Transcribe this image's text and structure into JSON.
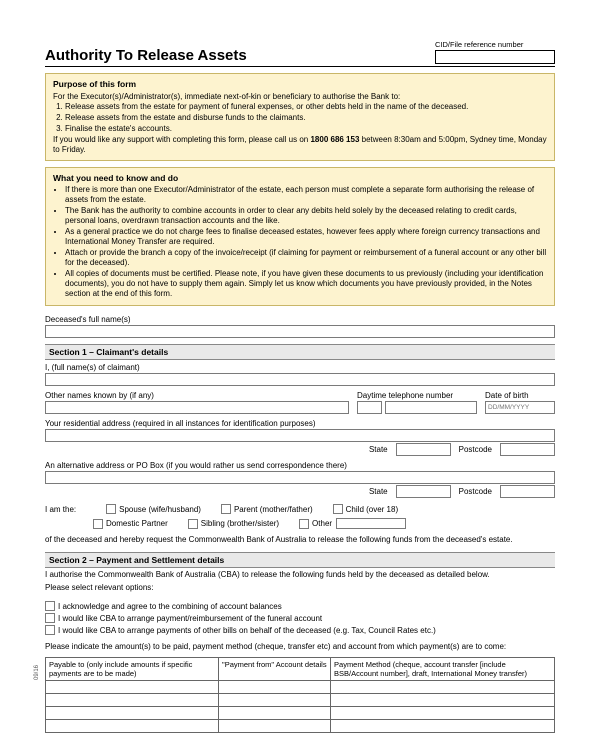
{
  "header": {
    "cid_label": "CID/File reference number",
    "title": "Authority To Release Assets"
  },
  "purpose": {
    "title": "Purpose of this form",
    "intro": "For the Executor(s)/Administrator(s), immediate next-of-kin or beneficiary to authorise the Bank to:",
    "items": [
      "Release assets from the estate for payment of funeral expenses, or other debts held in the name of the deceased.",
      "Release assets from the estate and disburse funds to the claimants.",
      "Finalise the estate's accounts."
    ],
    "support": "If you would like any support with completing this form, please call us on 1800 686 153 between 8:30am and 5:00pm, Sydney time, Monday to Friday."
  },
  "need": {
    "title": "What you need to know and do",
    "bullets": [
      "If there is more than one Executor/Administrator of the estate, each person must complete a separate form authorising the release of assets from the estate.",
      "The Bank has the authority to combine accounts in order to clear any debits held solely by the deceased relating to credit cards, personal loans, overdrawn transaction accounts and the like.",
      "As a general practice we do not charge fees to finalise deceased estates, however fees apply where foreign currency transactions and International Money Transfer are required.",
      "Attach or provide the branch a copy of the invoice/receipt (if claiming for payment or reimbursement of a funeral account or any other bill for the deceased).",
      "All copies of documents must be certified. Please note, if you have given these documents to us previously (including your identification documents), you do not have to supply them again. Simply let us know which documents you have previously provided, in the Notes section at the end of this form."
    ]
  },
  "deceased": {
    "label": "Deceased's full name(s)"
  },
  "section1": {
    "title": "Section 1 – Claimant's details",
    "fullname": "I, (full name(s) of claimant)",
    "othernames": "Other names known by (if any)",
    "daytime": "Daytime telephone number",
    "dob": "Date of birth",
    "dob_placeholder": "DD/MM/YYYY",
    "address": "Your residential address (required in all instances for identification purposes)",
    "altaddress": "An alternative address or PO Box (if you would rather us send correspondence there)",
    "state": "State",
    "postcode": "Postcode",
    "iam": "I am the:",
    "relations": {
      "spouse": "Spouse (wife/husband)",
      "parent": "Parent (mother/father)",
      "child": "Child (over 18)",
      "domestic": "Domestic Partner",
      "sibling": "Sibling (brother/sister)",
      "other": "Other"
    },
    "closing": "of the deceased and hereby request the Commonwealth Bank of Australia to release the following funds from the deceased's estate."
  },
  "section2": {
    "title": "Section 2 – Payment and Settlement details",
    "intro": "I authorise the Commonwealth Bank of Australia (CBA) to release the following funds held by the deceased as detailed below.",
    "select": "Please select relevant options:",
    "opts": {
      "combine": "I acknowledge and agree to the combining of account balances",
      "funeral": "I would like CBA to arrange payment/reimbursement of the funeral account",
      "other": "I would like CBA to arrange payments of other bills on behalf of the deceased (e.g. Tax, Council Rates etc.)"
    },
    "indicate": "Please indicate the amount(s) to be paid, payment method (cheque, transfer etc) and account from which payment(s) are to come:",
    "table_headers": {
      "payable": "Payable to (only include amounts if specific payments are to be made)",
      "from": "\"Payment from\" Account details",
      "method": "Payment Method (cheque, account transfer [include BSB/Account number], draft, International Money transfer)"
    }
  },
  "side_code": "09/16"
}
